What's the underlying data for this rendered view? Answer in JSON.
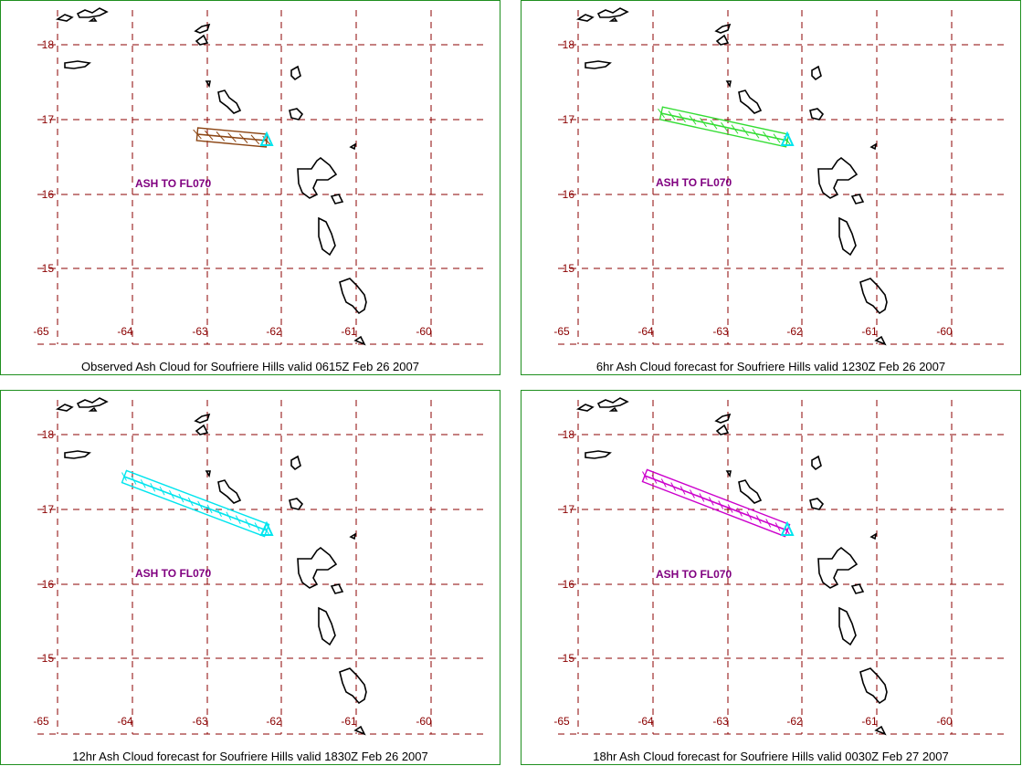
{
  "panels": [
    {
      "caption": "Observed Ash Cloud for Soufriere  Hills valid 0615Z Feb 26 2007",
      "ash_label": "ASH TO FL070",
      "plume_color": "#8b4513"
    },
    {
      "caption": "6hr Ash Cloud forecast for Soufriere  Hills valid 1230Z Feb 26 2007",
      "ash_label": "ASH TO FL070",
      "plume_color": "#33dd33"
    },
    {
      "caption": "12hr Ash Cloud forecast for Soufriere  Hills valid 1830Z Feb 26 2007",
      "ash_label": "ASH TO FL070",
      "plume_color": "#00e5ee"
    },
    {
      "caption": "18hr Ash Cloud forecast for Soufriere  Hills valid 0030Z Feb 27 2007",
      "ash_label": "ASH TO FL070",
      "plume_color": "#cc00cc"
    }
  ],
  "map": {
    "lon_ticks": [
      "-65",
      "-64",
      "-63",
      "-62",
      "-61",
      "-60"
    ],
    "lat_ticks": [
      "18",
      "17",
      "16",
      "15"
    ],
    "grid_color": "#8b0000",
    "volcano_color": "#00e5ee",
    "coast_color": "#000000"
  }
}
